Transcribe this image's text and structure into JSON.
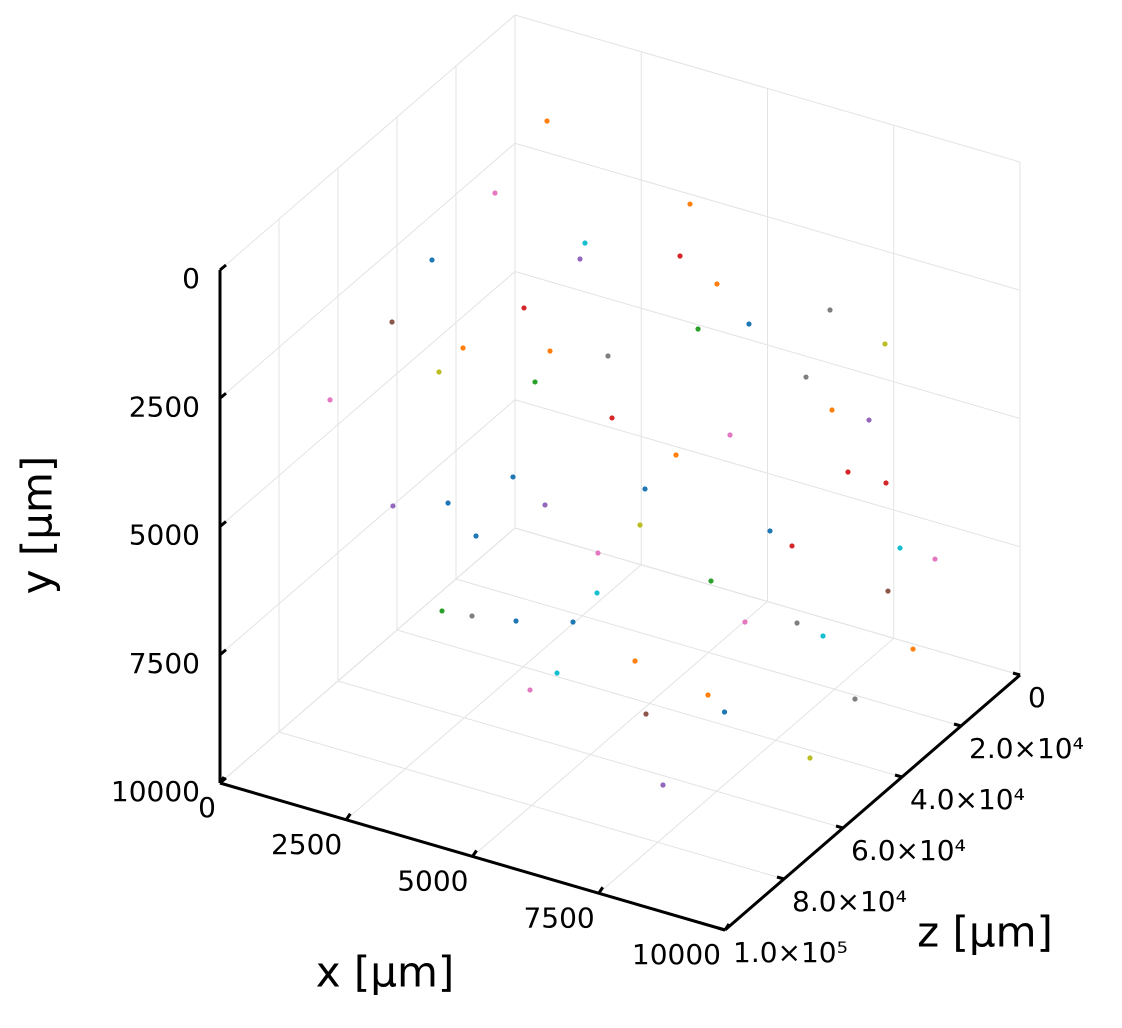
{
  "chart_data": {
    "type": "scatter3d",
    "xlabel": "x [μm]",
    "ylabel": "y [μm]",
    "zlabel": "z [μm]",
    "xlim": [
      0,
      10000
    ],
    "ylim": [
      0,
      10000
    ],
    "zlim": [
      0,
      100000
    ],
    "xticks": [
      0,
      2500,
      5000,
      7500,
      10000
    ],
    "yticks": [
      0,
      2500,
      5000,
      7500,
      10000
    ],
    "zticks": [
      0,
      {
        "value": 20000,
        "label": "2.0×10⁴"
      },
      {
        "value": 40000,
        "label": "4.0×10⁴"
      },
      {
        "value": 60000,
        "label": "6.0×10⁴"
      },
      {
        "value": 80000,
        "label": "8.0×10⁴"
      },
      {
        "value": 100000,
        "label": "1.0×10⁵"
      }
    ],
    "y_inverted": true,
    "grid": true,
    "series": [
      {
        "color": "#1f77b4",
        "x": [
          1277,
          7554,
          3347,
          2881,
          4693,
          7069,
          7970,
          5495,
          3901,
          5822
        ],
        "y": [
          1924,
          1374,
          4577,
          5694,
          6491,
          9076,
          5288,
          5179,
          5062,
          6187
        ],
        "z": [
          50000,
          50000,
          80000,
          50000,
          80000,
          50000,
          50000,
          50000,
          80000,
          80000
        ]
      },
      {
        "color": "#ff7f0e",
        "x": [
          1802,
          4634,
          5168,
          3614,
          6109,
          9050,
          6743,
          7050,
          9198,
          3644
        ],
        "y": [
          556,
          1363,
          2768,
          3029,
          4341,
          8772,
          8838,
          6596,
          2579,
          1470
        ],
        "z": [
          20000,
          20000,
          20000,
          50000,
          50000,
          20000,
          50000,
          80000,
          50000,
          80000
        ]
      },
      {
        "color": "#2ca02c",
        "x": [
          3317,
          3228,
          6802,
          6545
        ],
        "y": [
          3717,
          6715,
          6598,
          1760
        ],
        "z": [
          50000,
          80000,
          50000,
          50000
        ]
      },
      {
        "color": "#d62728",
        "x": [
          4436,
          3099,
          4842,
          7762,
          8515,
          8406
        ],
        "y": [
          2433,
          2337,
          3982,
          5690,
          5688,
          5456
        ],
        "z": [
          20000,
          50000,
          50000,
          20000,
          20000,
          50000
        ]
      },
      {
        "color": "#9467bd",
        "x": [
          2455,
          2257,
          3515,
          7604,
          8178
        ],
        "y": [
          3059,
          4947,
          6058,
          8854,
          4558
        ],
        "z": [
          20000,
          80000,
          50000,
          80000,
          20000
        ]
      },
      {
        "color": "#8c564b",
        "x": [
          2238,
          8554,
          7267
        ],
        "y": [
          1366,
          7784,
          7567
        ],
        "z": [
          80000,
          20000,
          80000
        ]
      },
      {
        "color": "#e377c2",
        "x": [
          772,
          1010,
          7178,
          9485,
          4970,
          7475,
          4564
        ],
        "y": [
          2255,
          3236,
          3645,
          6893,
          7756,
          7205,
          6694
        ],
        "z": [
          20000,
          80000,
          50000,
          20000,
          80000,
          50000,
          50000
        ]
      },
      {
        "color": "#7f7f7f",
        "x": [
          7406,
          4762,
          3822,
          9653,
          8505,
          8683
        ],
        "y": [
          2634,
          2797,
          6643,
          8082,
          6930,
          2084
        ],
        "z": [
          20000,
          50000,
          80000,
          50000,
          50000,
          50000
        ]
      },
      {
        "color": "#bcbd22",
        "x": [
          8495,
          3168,
          8762,
          5396
        ],
        "y": [
          2984,
          2074,
          9487,
          5910
        ],
        "z": [
          20000,
          80000,
          50000,
          50000
        ]
      },
      {
        "color": "#17becf",
        "x": [
          2554,
          8792,
          5505,
          9020,
          6297
        ],
        "y": [
          2719,
          6877,
          7273,
          7035,
          5485
        ],
        "z": [
          20000,
          20000,
          80000,
          50000,
          80000
        ]
      }
    ]
  }
}
